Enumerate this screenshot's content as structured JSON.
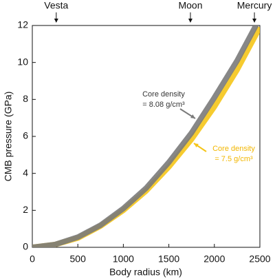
{
  "chart_data": {
    "type": "line",
    "x_label": "Body radius (km)",
    "y_label": "CMB pressure (GPa)",
    "x": [
      0,
      250,
      500,
      750,
      1000,
      1250,
      1500,
      1750,
      2000,
      2250,
      2500
    ],
    "series": [
      {
        "name_lines": [
          "Core density",
          "= 7.5 g/cm³"
        ],
        "color": "#f5c518",
        "values": [
          0,
          0.15,
          0.5,
          1.15,
          2.0,
          3.05,
          4.35,
          5.85,
          7.6,
          9.6,
          11.9
        ]
      },
      {
        "name_lines": [
          "Core density",
          "= 8.08 g/cm³"
        ],
        "color": "#7a7a7a",
        "values": [
          0,
          0.15,
          0.55,
          1.2,
          2.1,
          3.2,
          4.6,
          6.2,
          8.1,
          10.1,
          12.4
        ]
      }
    ],
    "markers": [
      {
        "label": "Vesta",
        "x": 263
      },
      {
        "label": "Moon",
        "x": 1737
      },
      {
        "label": "Mercury",
        "x": 2440
      }
    ],
    "xlim": [
      0,
      2500
    ],
    "xticks": [
      0,
      500,
      1000,
      1500,
      2000,
      2500
    ],
    "ylim": [
      0,
      12
    ],
    "yticks": [
      0,
      2,
      4,
      6,
      8,
      10,
      12
    ]
  }
}
